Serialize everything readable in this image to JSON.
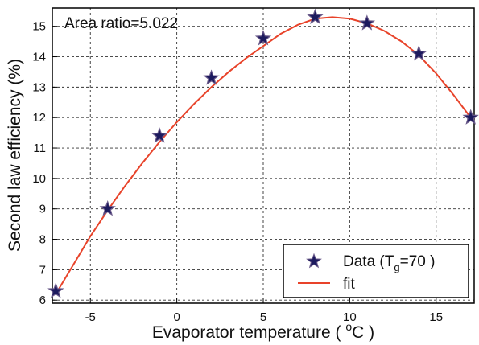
{
  "chart_data": {
    "type": "scatter",
    "title": "",
    "xlabel": "Evaporator temperature",
    "xlabel_prefix": "Evaporator temperature ( ",
    "xlabel_unit_sup": "o",
    "xlabel_unit": "C )",
    "ylabel": "Second law efficiency (%)",
    "xlim": [
      -7.2,
      17.2
    ],
    "ylim": [
      5.9,
      15.6
    ],
    "xticks": [
      -5,
      0,
      5,
      10,
      15
    ],
    "yticks": [
      6,
      7,
      8,
      9,
      10,
      11,
      12,
      13,
      14,
      15
    ],
    "grid": true,
    "annotation": "Area ratio=5.022",
    "legend_position": "bottom-right",
    "series": [
      {
        "name": "Data (T=70 )",
        "legend_label_prefix": "Data (T",
        "legend_label_sub": "g",
        "legend_label_suffix": "=70 )",
        "kind": "points",
        "marker": "star",
        "x": [
          -7,
          -4,
          -1,
          2,
          5,
          8,
          11,
          14,
          17
        ],
        "y": [
          6.3,
          9.0,
          11.4,
          13.3,
          14.6,
          15.3,
          15.1,
          14.1,
          12.0
        ]
      },
      {
        "name": "fit",
        "kind": "line",
        "x": [
          -7,
          -6,
          -5,
          -4,
          -3,
          -2,
          -1,
          0,
          1,
          2,
          3,
          4,
          5,
          6,
          7,
          8,
          9,
          10,
          11,
          12,
          13,
          14,
          15,
          16,
          17
        ],
        "y": [
          6.2,
          7.15,
          8.1,
          8.95,
          9.75,
          10.5,
          11.2,
          11.85,
          12.45,
          13.0,
          13.5,
          13.95,
          14.35,
          14.75,
          15.05,
          15.25,
          15.3,
          15.25,
          15.1,
          14.85,
          14.5,
          14.05,
          13.45,
          12.75,
          12.0
        ]
      }
    ],
    "colors": {
      "marker_fill": "#1c1a5e",
      "marker_edge": "#6a5a8a",
      "fit_line": "#e8432a",
      "grid": "#333333",
      "axis": "#000000"
    }
  }
}
